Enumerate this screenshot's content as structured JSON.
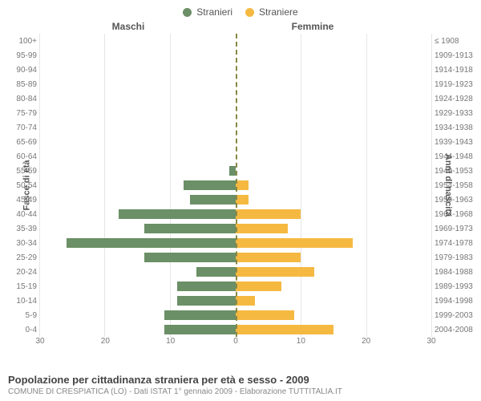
{
  "legend": {
    "male": {
      "label": "Stranieri",
      "color": "#6b8f66"
    },
    "female": {
      "label": "Straniere",
      "color": "#f5b942"
    }
  },
  "column_titles": {
    "left": "Maschi",
    "right": "Femmine"
  },
  "axis_titles": {
    "left": "Fasce di età",
    "right": "Anni di nascita"
  },
  "age_groups": [
    "100+",
    "95-99",
    "90-94",
    "85-89",
    "80-84",
    "75-79",
    "70-74",
    "65-69",
    "60-64",
    "55-59",
    "50-54",
    "45-49",
    "40-44",
    "35-39",
    "30-34",
    "25-29",
    "20-24",
    "15-19",
    "10-14",
    "5-9",
    "0-4"
  ],
  "birth_years": [
    "≤ 1908",
    "1909-1913",
    "1914-1918",
    "1919-1923",
    "1924-1928",
    "1929-1933",
    "1934-1938",
    "1939-1943",
    "1944-1948",
    "1949-1953",
    "1954-1958",
    "1959-1963",
    "1964-1968",
    "1969-1973",
    "1974-1978",
    "1979-1983",
    "1984-1988",
    "1989-1993",
    "1994-1998",
    "1999-2003",
    "2004-2008"
  ],
  "male_values": [
    0,
    0,
    0,
    0,
    0,
    0,
    0,
    0,
    0,
    1,
    8,
    7,
    18,
    14,
    26,
    14,
    6,
    9,
    9,
    11,
    11
  ],
  "female_values": [
    0,
    0,
    0,
    0,
    0,
    0,
    0,
    0,
    0,
    0,
    2,
    2,
    10,
    8,
    18,
    10,
    12,
    7,
    3,
    9,
    15
  ],
  "x_axis": {
    "max": 30,
    "ticks_left": [
      30,
      20,
      10,
      0
    ],
    "ticks_right": [
      0,
      10,
      20,
      30
    ]
  },
  "style": {
    "grid_color": "#e6e6e6",
    "center_line_color": "#888844",
    "background": "#ffffff",
    "label_color": "#777777",
    "bar_height_pct": 72
  },
  "footer": {
    "title": "Popolazione per cittadinanza straniera per età e sesso - 2009",
    "subtitle": "COMUNE DI CRESPIATICA (LO) - Dati ISTAT 1° gennaio 2009 - Elaborazione TUTTITALIA.IT"
  }
}
